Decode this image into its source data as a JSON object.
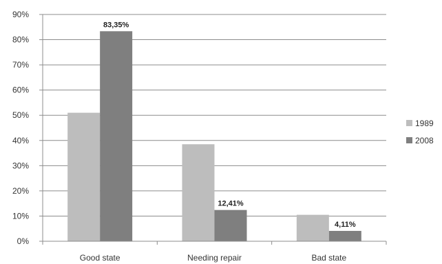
{
  "chart_data": {
    "type": "bar",
    "categories": [
      "Good state",
      "Needing repair",
      "Bad state"
    ],
    "series": [
      {
        "name": "1989",
        "values": [
          51,
          38.5,
          10.5
        ],
        "color": "#bdbdbd"
      },
      {
        "name": "2008",
        "values": [
          83.35,
          12.41,
          4.11
        ],
        "color": "#7f7f7f",
        "labels": [
          "83,35%",
          "12,41%",
          "4,11%"
        ]
      }
    ],
    "y_ticks": [
      "0%",
      "10%",
      "20%",
      "30%",
      "40%",
      "50%",
      "60%",
      "70%",
      "80%",
      "90%"
    ],
    "ylim": [
      0,
      90
    ],
    "grid": true,
    "legend": "right"
  }
}
